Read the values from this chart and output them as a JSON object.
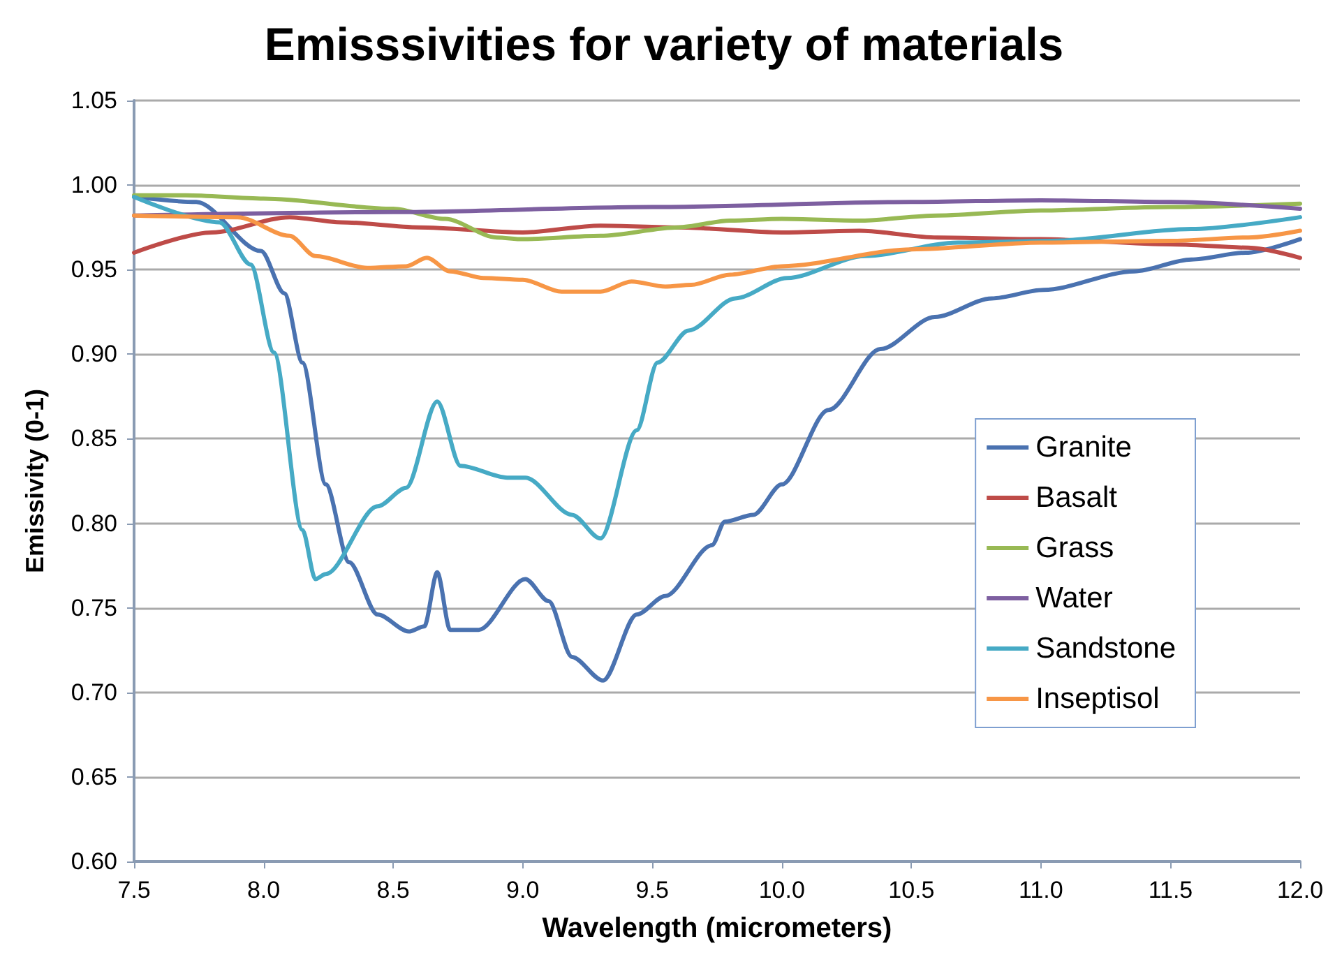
{
  "chart_data": {
    "type": "line",
    "title": "Emisssivities for variety of materials",
    "xlabel": "Wavelength (micrometers)",
    "ylabel": "Emissivity (0-1)",
    "xlim": [
      7.5,
      12.0
    ],
    "ylim": [
      0.6,
      1.05
    ],
    "xticks": [
      7.5,
      {
        "value": 8,
        "label": "8.0"
      },
      8.5,
      {
        "value": 9,
        "label": "9.0"
      },
      9.5,
      {
        "value": 10,
        "label": "10.0"
      },
      10.5,
      {
        "value": 11,
        "label": "11.0"
      },
      11.5,
      {
        "value": 12,
        "label": "12.0"
      }
    ],
    "yticks": [
      {
        "value": 0.6,
        "label": "0.60"
      },
      {
        "value": 0.65,
        "label": "0.65"
      },
      {
        "value": 0.7,
        "label": "0.70"
      },
      {
        "value": 0.75,
        "label": "0.75"
      },
      {
        "value": 0.8,
        "label": "0.80"
      },
      {
        "value": 0.85,
        "label": "0.85"
      },
      {
        "value": 0.9,
        "label": "0.90"
      },
      {
        "value": 0.95,
        "label": "0.95"
      },
      {
        "value": 1.0,
        "label": "1.00"
      },
      {
        "value": 1.05,
        "label": "1.05"
      }
    ],
    "grid": "y",
    "legend": "right",
    "marker": "none",
    "line_style": "solid",
    "series": [
      {
        "name": "Granite",
        "color": "#4a72b0",
        "x": [
          7.5,
          7.74,
          7.99,
          8.08,
          8.15,
          8.24,
          8.33,
          8.44,
          8.56,
          8.62,
          8.67,
          8.72,
          8.83,
          9.01,
          9.1,
          9.19,
          9.31,
          9.44,
          9.55,
          9.73,
          9.78,
          9.89,
          10.0,
          10.18,
          10.38,
          10.59,
          10.81,
          11.01,
          11.36,
          11.58,
          11.79,
          12.0
        ],
        "values": [
          0.993,
          0.99,
          0.961,
          0.936,
          0.895,
          0.823,
          0.777,
          0.746,
          0.736,
          0.739,
          0.771,
          0.737,
          0.737,
          0.767,
          0.754,
          0.721,
          0.707,
          0.746,
          0.757,
          0.787,
          0.801,
          0.805,
          0.823,
          0.867,
          0.903,
          0.922,
          0.933,
          0.938,
          0.949,
          0.956,
          0.96,
          0.968
        ]
      },
      {
        "name": "Basalt",
        "color": "#be4b48",
        "x": [
          7.5,
          7.8,
          8.1,
          8.3,
          8.6,
          9.0,
          9.3,
          9.6,
          10.0,
          10.3,
          10.6,
          11.0,
          11.5,
          11.8,
          12.0
        ],
        "values": [
          0.96,
          0.972,
          0.981,
          0.978,
          0.975,
          0.972,
          0.976,
          0.975,
          0.972,
          0.973,
          0.969,
          0.968,
          0.965,
          0.963,
          0.957
        ]
      },
      {
        "name": "Grass",
        "color": "#98b954",
        "x": [
          7.5,
          7.7,
          8.0,
          8.5,
          8.7,
          8.9,
          9.0,
          9.3,
          9.6,
          9.8,
          10.0,
          10.3,
          10.6,
          11.0,
          11.5,
          12.0
        ],
        "values": [
          0.994,
          0.994,
          0.992,
          0.986,
          0.98,
          0.969,
          0.968,
          0.97,
          0.975,
          0.979,
          0.98,
          0.979,
          0.982,
          0.985,
          0.987,
          0.989
        ]
      },
      {
        "name": "Water",
        "color": "#7d5fa0",
        "x": [
          7.5,
          8.5,
          9.5,
          10.5,
          11.0,
          11.5,
          12.0
        ],
        "values": [
          0.982,
          0.984,
          0.987,
          0.99,
          0.991,
          0.99,
          0.986
        ]
      },
      {
        "name": "Sandstone",
        "color": "#46aac5",
        "x": [
          7.5,
          7.83,
          7.95,
          8.04,
          8.15,
          8.2,
          8.24,
          8.44,
          8.55,
          8.67,
          8.76,
          8.94,
          9.01,
          9.19,
          9.3,
          9.44,
          9.52,
          9.64,
          9.82,
          10.02,
          10.32,
          10.68,
          11.04,
          11.58,
          12.0
        ],
        "values": [
          0.993,
          0.978,
          0.953,
          0.901,
          0.796,
          0.767,
          0.77,
          0.81,
          0.821,
          0.872,
          0.834,
          0.827,
          0.827,
          0.805,
          0.791,
          0.855,
          0.895,
          0.914,
          0.933,
          0.945,
          0.958,
          0.966,
          0.967,
          0.974,
          0.981
        ]
      },
      {
        "name": "Inseptisol",
        "color": "#f79646",
        "x": [
          7.5,
          7.9,
          8.1,
          8.2,
          8.4,
          8.55,
          8.63,
          8.72,
          8.85,
          9.0,
          9.15,
          9.3,
          9.42,
          9.55,
          9.65,
          9.8,
          10.0,
          10.5,
          11.0,
          11.5,
          11.8,
          12.0
        ],
        "values": [
          0.982,
          0.981,
          0.97,
          0.958,
          0.951,
          0.952,
          0.957,
          0.949,
          0.945,
          0.944,
          0.937,
          0.937,
          0.943,
          0.94,
          0.941,
          0.947,
          0.952,
          0.962,
          0.966,
          0.967,
          0.969,
          0.973
        ]
      }
    ]
  }
}
